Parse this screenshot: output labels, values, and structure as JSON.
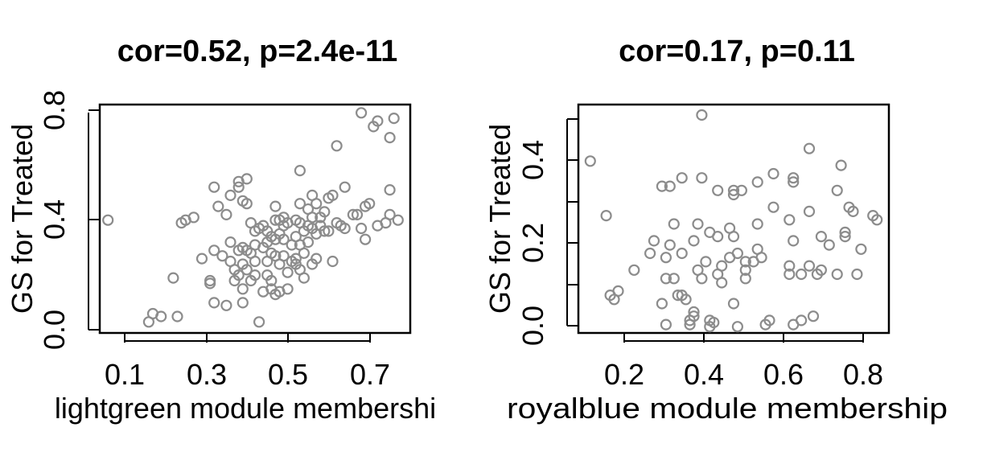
{
  "chart_data": [
    {
      "type": "scatter",
      "title": "cor=0.52, p=2.4e-11",
      "xlabel": "lightgreen module membershi",
      "ylabel": "GS for Treated",
      "xlim": [
        0.04,
        0.8
      ],
      "ylim": [
        -0.01,
        0.82
      ],
      "xticks": [
        "0.1",
        "0.3",
        "0.5",
        "0.7"
      ],
      "xtick_values": [
        0.1,
        0.3,
        0.5,
        0.7
      ],
      "yticks": [
        "0.0",
        "0.4",
        "0.8"
      ],
      "ytick_values": [
        0.0,
        0.4,
        0.8
      ],
      "marker_color": "#8c8c8c",
      "grid": false,
      "points": [
        [
          0.06,
          0.4
        ],
        [
          0.16,
          0.03
        ],
        [
          0.17,
          0.06
        ],
        [
          0.19,
          0.05
        ],
        [
          0.22,
          0.19
        ],
        [
          0.23,
          0.05
        ],
        [
          0.24,
          0.39
        ],
        [
          0.25,
          0.4
        ],
        [
          0.27,
          0.41
        ],
        [
          0.29,
          0.26
        ],
        [
          0.31,
          0.18
        ],
        [
          0.31,
          0.17
        ],
        [
          0.32,
          0.29
        ],
        [
          0.32,
          0.1
        ],
        [
          0.32,
          0.52
        ],
        [
          0.33,
          0.45
        ],
        [
          0.34,
          0.27
        ],
        [
          0.35,
          0.42
        ],
        [
          0.35,
          0.09
        ],
        [
          0.36,
          0.49
        ],
        [
          0.36,
          0.32
        ],
        [
          0.36,
          0.25
        ],
        [
          0.37,
          0.22
        ],
        [
          0.37,
          0.18
        ],
        [
          0.38,
          0.54
        ],
        [
          0.38,
          0.52
        ],
        [
          0.38,
          0.29
        ],
        [
          0.38,
          0.2
        ],
        [
          0.39,
          0.47
        ],
        [
          0.39,
          0.3
        ],
        [
          0.39,
          0.24
        ],
        [
          0.39,
          0.15
        ],
        [
          0.39,
          0.1
        ],
        [
          0.4,
          0.55
        ],
        [
          0.4,
          0.46
        ],
        [
          0.4,
          0.29
        ],
        [
          0.4,
          0.22
        ],
        [
          0.41,
          0.39
        ],
        [
          0.41,
          0.28
        ],
        [
          0.41,
          0.18
        ],
        [
          0.42,
          0.36
        ],
        [
          0.42,
          0.31
        ],
        [
          0.42,
          0.25
        ],
        [
          0.42,
          0.2
        ],
        [
          0.43,
          0.03
        ],
        [
          0.43,
          0.37
        ],
        [
          0.44,
          0.38
        ],
        [
          0.44,
          0.3
        ],
        [
          0.44,
          0.14
        ],
        [
          0.45,
          0.36
        ],
        [
          0.45,
          0.32
        ],
        [
          0.45,
          0.25
        ],
        [
          0.45,
          0.2
        ],
        [
          0.46,
          0.34
        ],
        [
          0.46,
          0.28
        ],
        [
          0.46,
          0.18
        ],
        [
          0.46,
          0.15
        ],
        [
          0.47,
          0.45
        ],
        [
          0.47,
          0.4
        ],
        [
          0.47,
          0.33
        ],
        [
          0.47,
          0.27
        ],
        [
          0.47,
          0.13
        ],
        [
          0.48,
          0.4
        ],
        [
          0.48,
          0.35
        ],
        [
          0.48,
          0.24
        ],
        [
          0.48,
          0.14
        ],
        [
          0.49,
          0.41
        ],
        [
          0.49,
          0.38
        ],
        [
          0.49,
          0.33
        ],
        [
          0.49,
          0.27
        ],
        [
          0.5,
          0.39
        ],
        [
          0.5,
          0.21
        ],
        [
          0.5,
          0.15
        ],
        [
          0.51,
          0.31
        ],
        [
          0.51,
          0.25
        ],
        [
          0.52,
          0.4
        ],
        [
          0.52,
          0.34
        ],
        [
          0.52,
          0.26
        ],
        [
          0.52,
          0.24
        ],
        [
          0.53,
          0.58
        ],
        [
          0.53,
          0.46
        ],
        [
          0.53,
          0.39
        ],
        [
          0.53,
          0.31
        ],
        [
          0.53,
          0.22
        ],
        [
          0.54,
          0.36
        ],
        [
          0.54,
          0.28
        ],
        [
          0.54,
          0.19
        ],
        [
          0.55,
          0.44
        ],
        [
          0.55,
          0.38
        ],
        [
          0.55,
          0.32
        ],
        [
          0.56,
          0.49
        ],
        [
          0.56,
          0.41
        ],
        [
          0.56,
          0.37
        ],
        [
          0.56,
          0.24
        ],
        [
          0.57,
          0.46
        ],
        [
          0.57,
          0.35
        ],
        [
          0.57,
          0.26
        ],
        [
          0.58,
          0.41
        ],
        [
          0.58,
          0.38
        ],
        [
          0.59,
          0.43
        ],
        [
          0.59,
          0.36
        ],
        [
          0.6,
          0.48
        ],
        [
          0.6,
          0.36
        ],
        [
          0.61,
          0.49
        ],
        [
          0.61,
          0.25
        ],
        [
          0.62,
          0.67
        ],
        [
          0.62,
          0.39
        ],
        [
          0.63,
          0.38
        ],
        [
          0.64,
          0.52
        ],
        [
          0.64,
          0.37
        ],
        [
          0.66,
          0.42
        ],
        [
          0.67,
          0.42
        ],
        [
          0.68,
          0.79
        ],
        [
          0.68,
          0.37
        ],
        [
          0.69,
          0.45
        ],
        [
          0.69,
          0.33
        ],
        [
          0.7,
          0.46
        ],
        [
          0.71,
          0.74
        ],
        [
          0.72,
          0.76
        ],
        [
          0.72,
          0.38
        ],
        [
          0.74,
          0.39
        ],
        [
          0.75,
          0.7
        ],
        [
          0.75,
          0.51
        ],
        [
          0.75,
          0.42
        ],
        [
          0.76,
          0.77
        ],
        [
          0.77,
          0.4
        ]
      ]
    },
    {
      "type": "scatter",
      "title": "cor=0.17, p=0.11",
      "xlabel": "royalblue module membership",
      "ylabel": "GS for Treated",
      "xlim": [
        0.08,
        0.86
      ],
      "ylim": [
        -0.01,
        0.535
      ],
      "xticks": [
        "0.2",
        "0.4",
        "0.6",
        "0.8"
      ],
      "xtick_values": [
        0.2,
        0.4,
        0.6,
        0.8
      ],
      "yticks": [
        "0.0",
        "0.2",
        "0.4"
      ],
      "ytick_values": [
        0.0,
        0.2,
        0.4
      ],
      "marker_color": "#8c8c8c",
      "grid": false,
      "points": [
        [
          0.11,
          0.4
        ],
        [
          0.15,
          0.27
        ],
        [
          0.16,
          0.08
        ],
        [
          0.17,
          0.07
        ],
        [
          0.18,
          0.09
        ],
        [
          0.22,
          0.14
        ],
        [
          0.26,
          0.18
        ],
        [
          0.27,
          0.21
        ],
        [
          0.29,
          0.34
        ],
        [
          0.29,
          0.06
        ],
        [
          0.3,
          0.17
        ],
        [
          0.3,
          0.12
        ],
        [
          0.3,
          0.01
        ],
        [
          0.31,
          0.34
        ],
        [
          0.31,
          0.2
        ],
        [
          0.32,
          0.25
        ],
        [
          0.32,
          0.12
        ],
        [
          0.33,
          0.08
        ],
        [
          0.34,
          0.36
        ],
        [
          0.34,
          0.18
        ],
        [
          0.34,
          0.08
        ],
        [
          0.35,
          0.07
        ],
        [
          0.36,
          0.02
        ],
        [
          0.36,
          0.01
        ],
        [
          0.37,
          0.21
        ],
        [
          0.37,
          0.04
        ],
        [
          0.37,
          0.03
        ],
        [
          0.38,
          0.25
        ],
        [
          0.38,
          0.14
        ],
        [
          0.39,
          0.51
        ],
        [
          0.39,
          0.36
        ],
        [
          0.39,
          0.12
        ],
        [
          0.4,
          0.16
        ],
        [
          0.41,
          0.23
        ],
        [
          0.41,
          0.02
        ],
        [
          0.41,
          0.005
        ],
        [
          0.42,
          0.015
        ],
        [
          0.43,
          0.33
        ],
        [
          0.43,
          0.22
        ],
        [
          0.43,
          0.13
        ],
        [
          0.44,
          0.15
        ],
        [
          0.44,
          0.11
        ],
        [
          0.46,
          0.24
        ],
        [
          0.46,
          0.17
        ],
        [
          0.47,
          0.33
        ],
        [
          0.47,
          0.32
        ],
        [
          0.47,
          0.22
        ],
        [
          0.47,
          0.06
        ],
        [
          0.48,
          0.18
        ],
        [
          0.48,
          0.005
        ],
        [
          0.49,
          0.33
        ],
        [
          0.5,
          0.16
        ],
        [
          0.5,
          0.14
        ],
        [
          0.5,
          0.12
        ],
        [
          0.52,
          0.16
        ],
        [
          0.53,
          0.35
        ],
        [
          0.53,
          0.25
        ],
        [
          0.53,
          0.19
        ],
        [
          0.54,
          0.17
        ],
        [
          0.55,
          0.01
        ],
        [
          0.56,
          0.02
        ],
        [
          0.57,
          0.29
        ],
        [
          0.57,
          0.37
        ],
        [
          0.61,
          0.26
        ],
        [
          0.61,
          0.15
        ],
        [
          0.61,
          0.13
        ],
        [
          0.62,
          0.35
        ],
        [
          0.62,
          0.36
        ],
        [
          0.62,
          0.21
        ],
        [
          0.62,
          0.01
        ],
        [
          0.64,
          0.13
        ],
        [
          0.64,
          0.02
        ],
        [
          0.66,
          0.43
        ],
        [
          0.66,
          0.28
        ],
        [
          0.66,
          0.15
        ],
        [
          0.67,
          0.03
        ],
        [
          0.68,
          0.13
        ],
        [
          0.69,
          0.22
        ],
        [
          0.69,
          0.14
        ],
        [
          0.71,
          0.2
        ],
        [
          0.73,
          0.13
        ],
        [
          0.73,
          0.33
        ],
        [
          0.74,
          0.39
        ],
        [
          0.75,
          0.22
        ],
        [
          0.75,
          0.23
        ],
        [
          0.76,
          0.29
        ],
        [
          0.77,
          0.28
        ],
        [
          0.78,
          0.13
        ],
        [
          0.79,
          0.19
        ],
        [
          0.82,
          0.27
        ],
        [
          0.83,
          0.26
        ]
      ]
    }
  ]
}
